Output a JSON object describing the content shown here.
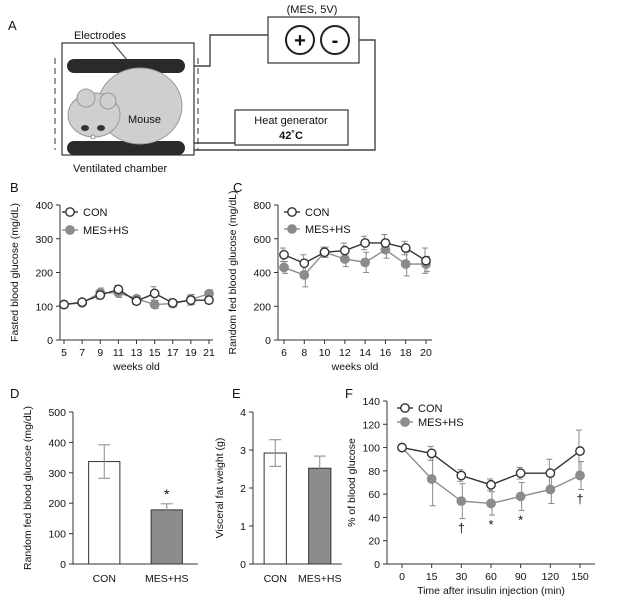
{
  "diagram": {
    "panel_label": "A",
    "power_label": "(MES, 5V)",
    "plus_symbol": "+",
    "minus_symbol": "-",
    "electrodes_label": "Electrodes",
    "mouse_label": "Mouse",
    "heat_generator_label": "Heat generator",
    "temperature_label": "42˚C",
    "chamber_label": "Ventilated  chamber"
  },
  "chart_data": [
    {
      "panel": "B",
      "type": "line",
      "ylabel": "Fasted blood glucose (mg/dL)",
      "xlabel": "weeks old",
      "x": [
        5,
        7,
        9,
        11,
        13,
        15,
        17,
        19,
        21
      ],
      "ylim": [
        0,
        400
      ],
      "yticks": [
        0,
        100,
        200,
        300,
        400
      ],
      "legend": "top-left",
      "series": [
        {
          "name": "CON",
          "values": [
            105,
            112,
            133,
            150,
            115,
            138,
            110,
            118,
            118
          ],
          "err": [
            6,
            8,
            12,
            12,
            10,
            20,
            12,
            15,
            10
          ],
          "marker": "open"
        },
        {
          "name": "MES+HS",
          "values": [
            105,
            110,
            140,
            140,
            122,
            105,
            108,
            120,
            137
          ],
          "err": [
            6,
            8,
            14,
            14,
            10,
            12,
            10,
            15,
            12
          ],
          "marker": "filled"
        }
      ]
    },
    {
      "panel": "C",
      "type": "line",
      "ylabel": "Random fed blood glucose (mg/dL)",
      "xlabel": "weeks old",
      "x": [
        6,
        8,
        10,
        12,
        14,
        16,
        18,
        20
      ],
      "ylim": [
        0,
        800
      ],
      "yticks": [
        0,
        200,
        400,
        600,
        800
      ],
      "legend": "top-left",
      "series": [
        {
          "name": "CON",
          "values": [
            505,
            455,
            520,
            530,
            575,
            575,
            545,
            470
          ],
          "err": [
            40,
            50,
            30,
            45,
            40,
            50,
            40,
            75
          ],
          "marker": "open"
        },
        {
          "name": "MES+HS",
          "values": [
            430,
            385,
            520,
            480,
            460,
            535,
            450,
            450
          ],
          "err": [
            35,
            70,
            30,
            45,
            60,
            50,
            70,
            45
          ],
          "marker": "filled"
        }
      ]
    },
    {
      "panel": "D",
      "type": "bar",
      "ylabel": "Random fed blood glucose (mg/dL)",
      "categories": [
        "CON",
        "MES+HS"
      ],
      "values": [
        337,
        178
      ],
      "err": [
        55,
        20
      ],
      "ylim": [
        0,
        500
      ],
      "yticks": [
        0,
        100,
        200,
        300,
        400,
        500
      ],
      "annotations": [
        {
          "category": "MES+HS",
          "text": "*"
        }
      ]
    },
    {
      "panel": "E",
      "type": "bar",
      "ylabel": "Visceral fat weight (g)",
      "categories": [
        "CON",
        "MES+HS"
      ],
      "values": [
        2.92,
        2.52
      ],
      "err": [
        0.35,
        0.32
      ],
      "ylim": [
        0,
        4
      ],
      "yticks": [
        0,
        1,
        2,
        3,
        4
      ]
    },
    {
      "panel": "F",
      "type": "line",
      "ylabel": "% of blood glucose",
      "xlabel": "Time after insulin injection (min)",
      "x": [
        0,
        15,
        30,
        60,
        90,
        120,
        150
      ],
      "ylim": [
        0,
        140
      ],
      "yticks": [
        0,
        20,
        40,
        60,
        80,
        100,
        120,
        140
      ],
      "legend": "top-left",
      "series": [
        {
          "name": "CON",
          "values": [
            100,
            95,
            76,
            68,
            78,
            78,
            97
          ],
          "err": [
            0,
            6,
            5,
            5,
            5,
            12,
            18
          ],
          "marker": "open"
        },
        {
          "name": "MES+HS",
          "values": [
            100,
            73,
            54,
            52,
            58,
            64,
            76
          ],
          "err": [
            0,
            23,
            15,
            10,
            12,
            12,
            12
          ],
          "marker": "filled"
        }
      ],
      "annotations": [
        {
          "x": 30,
          "text": "†"
        },
        {
          "x": 60,
          "text": "*"
        },
        {
          "x": 90,
          "text": "*"
        },
        {
          "x": 150,
          "text": "†"
        }
      ]
    }
  ]
}
